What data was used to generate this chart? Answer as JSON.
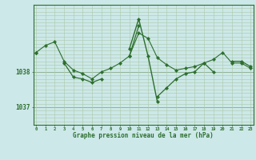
{
  "title": "Graphe pression niveau de la mer (hPa)",
  "background_color": "#cce8e8",
  "plot_bg_color": "#cce8e8",
  "line_color": "#2d6e2d",
  "grid_color_minor": "#aac8aa",
  "grid_color_major": "#88aa88",
  "text_color": "#2d6e2d",
  "ylim": [
    1036.5,
    1039.9
  ],
  "yticks": [
    1037,
    1038
  ],
  "xlim": [
    -0.3,
    23.3
  ],
  "xticks": [
    0,
    1,
    2,
    3,
    4,
    5,
    6,
    7,
    8,
    9,
    10,
    11,
    12,
    13,
    14,
    15,
    16,
    17,
    18,
    19,
    20,
    21,
    22,
    23
  ],
  "series1": [
    1038.55,
    1038.75,
    1038.85,
    1038.3,
    1038.05,
    1037.95,
    1037.8,
    1038.0,
    1038.1,
    1038.25,
    1038.45,
    1039.1,
    1038.95,
    1038.4,
    1038.2,
    1038.05,
    1038.1,
    1038.15,
    1038.25,
    1038.35,
    1038.55,
    1038.25,
    1038.25,
    1038.1
  ],
  "series2": [
    1038.55,
    null,
    null,
    1038.25,
    1037.85,
    1037.8,
    1037.7,
    1037.8,
    null,
    null,
    1038.45,
    1039.3,
    null,
    1037.3,
    1037.55,
    1037.8,
    1037.95,
    1038.0,
    1038.25,
    1038.0,
    null,
    1038.3,
    1038.3,
    1038.15
  ],
  "series3": [
    null,
    null,
    null,
    null,
    null,
    null,
    null,
    null,
    null,
    null,
    1038.65,
    1039.5,
    1038.45,
    1037.15,
    null,
    null,
    null,
    null,
    null,
    null,
    null,
    null,
    null,
    null
  ],
  "lw1": 0.8,
  "lw2": 0.9,
  "lw3": 1.0
}
